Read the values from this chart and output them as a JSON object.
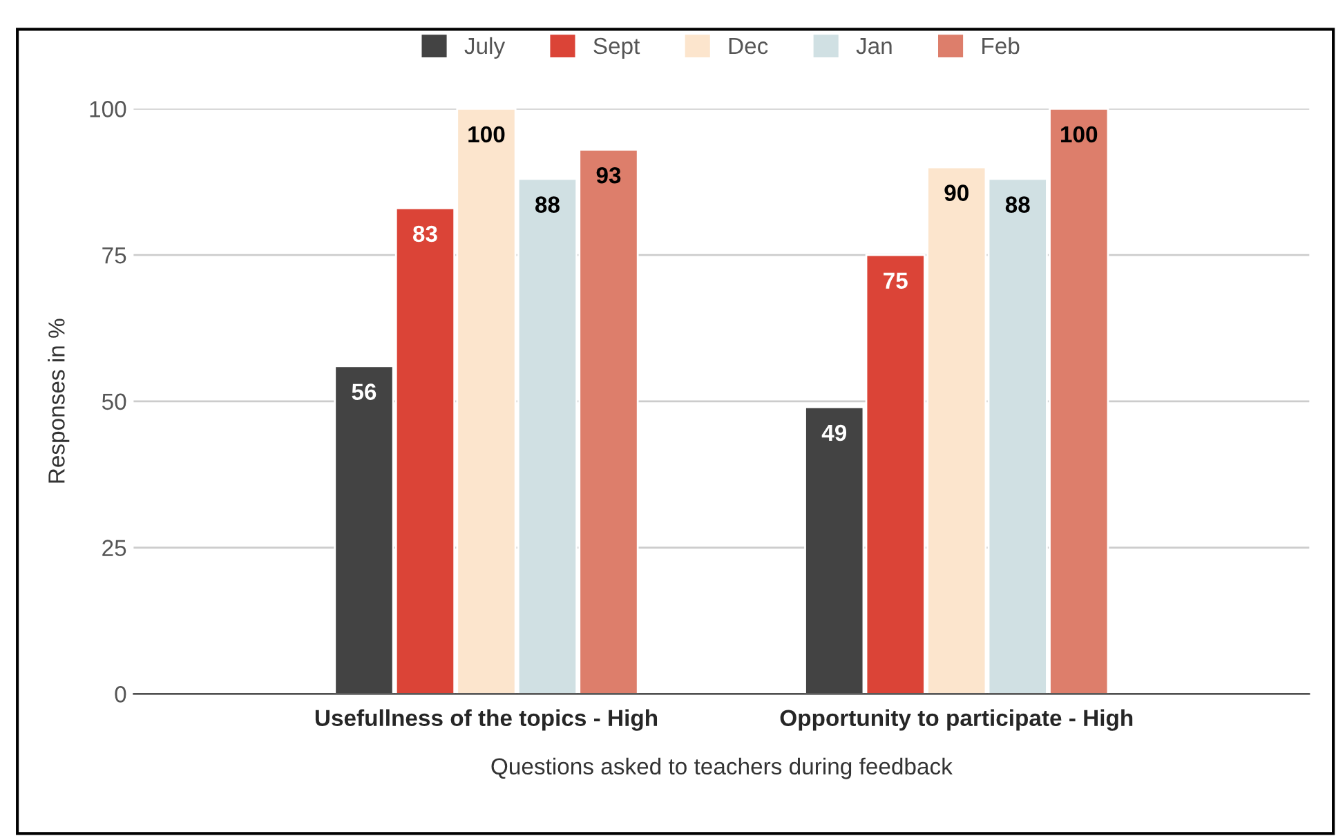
{
  "chart_data": {
    "type": "bar",
    "xlabel": "Questions asked to teachers during feedback",
    "ylabel": "Responses in %",
    "categories": [
      "Usefullness of the topics - High",
      "Opportunity to participate - High"
    ],
    "series": [
      {
        "name": "July",
        "color": "#434343",
        "values": [
          56,
          49
        ]
      },
      {
        "name": "Sept",
        "color": "#db4437",
        "values": [
          83,
          75
        ]
      },
      {
        "name": "Dec",
        "color": "#fce5cd",
        "values": [
          100,
          90
        ]
      },
      {
        "name": "Jan",
        "color": "#d0e0e3",
        "values": [
          88,
          88
        ]
      },
      {
        "name": "Feb",
        "color": "#dd7e6b",
        "values": [
          93,
          100
        ]
      }
    ],
    "ylim": [
      0,
      100
    ],
    "yticks": [
      0,
      25,
      50,
      75,
      100
    ],
    "grid": "y",
    "legend": "top",
    "data_labels": true
  }
}
